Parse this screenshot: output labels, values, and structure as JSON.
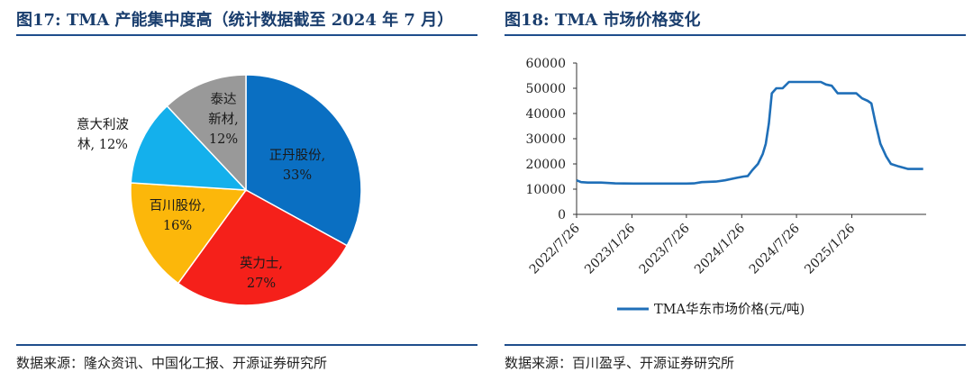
{
  "left": {
    "title": "图17:  TMA 产能集中度高（统计数据截至 2024 年 7 月）",
    "source": "数据来源：隆众资讯、中国化工报、开源证券研究所"
  },
  "right": {
    "title": "图18:  TMA 市场价格变化",
    "source": "数据来源：百川盈孚、开源证券研究所"
  },
  "chart_data": [
    {
      "type": "pie",
      "title": "",
      "start_angle_deg": 0,
      "direction": "clockwise",
      "slices": [
        {
          "label_lines": [
            "正丹股份,",
            "33%"
          ],
          "name": "正丹股份",
          "value": 33,
          "color": "#0a6fc2"
        },
        {
          "label_lines": [
            "英力士,",
            "27%"
          ],
          "name": "英力士",
          "value": 27,
          "color": "#f5201a"
        },
        {
          "label_lines": [
            "百川股份,",
            "16%"
          ],
          "name": "百川股份",
          "value": 16,
          "color": "#fcb70a"
        },
        {
          "label_lines": [
            "意大利波",
            "林, 12%"
          ],
          "name": "意大利波林",
          "value": 12,
          "color": "#14b0ec"
        },
        {
          "label_lines": [
            "泰达",
            "新材,",
            "12%"
          ],
          "name": "泰达新材",
          "value": 12,
          "color": "#999999"
        }
      ]
    },
    {
      "type": "line",
      "title": "",
      "xlabel": "",
      "ylabel": "",
      "ylim": [
        0,
        60000
      ],
      "yticks": [
        0,
        10000,
        20000,
        30000,
        40000,
        50000,
        60000
      ],
      "ytick_labels": [
        "0",
        "10000",
        "20000",
        "30000",
        "40000",
        "50000",
        "60000"
      ],
      "xlim": [
        "2022-07-26",
        "2025-09-30"
      ],
      "xticks": [
        "2022-07-26",
        "2023-01-26",
        "2023-07-26",
        "2024-01-26",
        "2024-07-26",
        "2025-01-26"
      ],
      "xtick_labels": [
        "2022/7/26",
        "2023/1/26",
        "2023/7/26",
        "2024/1/26",
        "2024/7/26",
        "2025/1/26"
      ],
      "grid": false,
      "legend_position": "bottom",
      "series": [
        {
          "name": "TMA华东市场价格(元/吨)",
          "color": "#1f6fb8",
          "x": [
            "2022-07-26",
            "2022-08-10",
            "2022-09-01",
            "2022-10-15",
            "2022-12-01",
            "2023-02-01",
            "2023-04-01",
            "2023-06-01",
            "2023-07-26",
            "2023-08-20",
            "2023-09-15",
            "2023-11-01",
            "2023-12-01",
            "2024-01-10",
            "2024-02-01",
            "2024-02-15",
            "2024-03-01",
            "2024-03-20",
            "2024-04-05",
            "2024-04-15",
            "2024-04-25",
            "2024-05-05",
            "2024-05-20",
            "2024-06-10",
            "2024-07-01",
            "2024-08-01",
            "2024-09-15",
            "2024-10-15",
            "2024-11-01",
            "2024-11-20",
            "2024-12-10",
            "2025-01-10",
            "2025-02-10",
            "2025-03-01",
            "2025-03-20",
            "2025-04-01",
            "2025-04-15",
            "2025-05-01",
            "2025-05-20",
            "2025-06-05",
            "2025-07-01",
            "2025-08-01",
            "2025-09-20"
          ],
          "values": [
            13500,
            12800,
            12600,
            12600,
            12300,
            12200,
            12200,
            12200,
            12200,
            12300,
            12800,
            13000,
            13500,
            14500,
            15000,
            15200,
            17500,
            20000,
            24000,
            28000,
            36000,
            48000,
            50000,
            50000,
            52500,
            52500,
            52500,
            52500,
            51500,
            51000,
            48000,
            48000,
            48000,
            46000,
            45000,
            44000,
            36000,
            28000,
            23000,
            20000,
            19000,
            18000,
            18000
          ]
        }
      ]
    }
  ]
}
